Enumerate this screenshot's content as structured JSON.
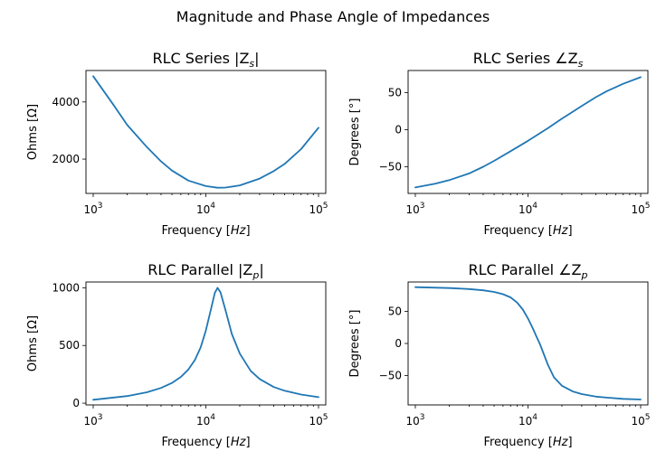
{
  "figure": {
    "title": "Magnitude and Phase Angle of Impedances"
  },
  "colors": {
    "line": "#1f77b4"
  },
  "chart_data": [
    {
      "id": "series-magnitude",
      "type": "line",
      "title": "RLC Series |Z",
      "title_sub": "s",
      "title_suffix": "|",
      "xlabel": "Frequency [",
      "xlabel_unit": "Hz",
      "xlabel_suffix": "]",
      "ylabel": "Ohms [Ω]",
      "xscale": "log",
      "xlim": [
        1000,
        100000
      ],
      "ylim": [
        800,
        5100
      ],
      "xticks": [
        1000,
        10000,
        100000
      ],
      "xtick_labels": [
        [
          "10",
          "3"
        ],
        [
          "10",
          "4"
        ],
        [
          "10",
          "5"
        ]
      ],
      "yticks": [
        2000,
        4000
      ],
      "ytick_labels": [
        "2000",
        "4000"
      ],
      "grid": false,
      "x": [
        1000,
        1500,
        2000,
        3000,
        4000,
        5000,
        7000,
        10000,
        12700,
        15000,
        20000,
        30000,
        40000,
        50000,
        70000,
        100000
      ],
      "y": [
        4900,
        3920,
        3200,
        2420,
        1920,
        1600,
        1250,
        1055,
        1000,
        1005,
        1080,
        1320,
        1580,
        1830,
        2350,
        3100
      ]
    },
    {
      "id": "series-phase",
      "type": "line",
      "title": "RLC Series ∠Z",
      "title_sub": "s",
      "title_suffix": "",
      "xlabel": "Frequency [",
      "xlabel_unit": "Hz",
      "xlabel_suffix": "]",
      "ylabel": "Degrees [°]",
      "xscale": "log",
      "xlim": [
        1000,
        100000
      ],
      "ylim": [
        -86,
        80
      ],
      "xticks": [
        1000,
        10000,
        100000
      ],
      "xtick_labels": [
        [
          "10",
          "3"
        ],
        [
          "10",
          "4"
        ],
        [
          "10",
          "5"
        ]
      ],
      "yticks": [
        -50,
        0,
        50
      ],
      "ytick_labels": [
        "−50",
        "0",
        "50"
      ],
      "grid": false,
      "x": [
        1000,
        1500,
        2000,
        3000,
        4000,
        5000,
        7000,
        10000,
        15000,
        20000,
        30000,
        40000,
        50000,
        70000,
        100000
      ],
      "y": [
        -78,
        -73,
        -68,
        -59,
        -50,
        -42,
        -29,
        -15,
        2,
        15,
        32,
        44,
        52,
        62,
        71
      ]
    },
    {
      "id": "parallel-magnitude",
      "type": "line",
      "title": "RLC Parallel |Z",
      "title_sub": "p",
      "title_suffix": "|",
      "xlabel": "Frequency [",
      "xlabel_unit": "Hz",
      "xlabel_suffix": "]",
      "ylabel": "Ohms [Ω]",
      "xscale": "log",
      "xlim": [
        1000,
        100000
      ],
      "ylim": [
        -15,
        1050
      ],
      "xticks": [
        1000,
        10000,
        100000
      ],
      "xtick_labels": [
        [
          "10",
          "3"
        ],
        [
          "10",
          "4"
        ],
        [
          "10",
          "5"
        ]
      ],
      "yticks": [
        0,
        500,
        1000
      ],
      "ytick_labels": [
        "0",
        "500",
        "1000"
      ],
      "grid": false,
      "x": [
        1000,
        2000,
        3000,
        4000,
        5000,
        6000,
        7000,
        8000,
        9000,
        10000,
        11000,
        12000,
        12700,
        13500,
        15000,
        17000,
        20000,
        25000,
        30000,
        40000,
        50000,
        70000,
        100000
      ],
      "y": [
        30,
        62,
        95,
        132,
        175,
        228,
        292,
        375,
        485,
        630,
        800,
        955,
        1000,
        960,
        800,
        600,
        430,
        280,
        210,
        140,
        108,
        75,
        52
      ]
    },
    {
      "id": "parallel-phase",
      "type": "line",
      "title": "RLC Parallel ∠Z",
      "title_sub": "p",
      "title_suffix": "",
      "xlabel": "Frequency [",
      "xlabel_unit": "Hz",
      "xlabel_suffix": "]",
      "ylabel": "Degrees [°]",
      "xscale": "log",
      "xlim": [
        1000,
        100000
      ],
      "ylim": [
        -96,
        96
      ],
      "xticks": [
        1000,
        10000,
        100000
      ],
      "xtick_labels": [
        [
          "10",
          "3"
        ],
        [
          "10",
          "4"
        ],
        [
          "10",
          "5"
        ]
      ],
      "yticks": [
        -50,
        0,
        50
      ],
      "ytick_labels": [
        "−50",
        "0",
        "50"
      ],
      "grid": false,
      "x": [
        1000,
        2000,
        3000,
        4000,
        5000,
        6000,
        7000,
        8000,
        9000,
        10000,
        11000,
        12000,
        12700,
        13500,
        15000,
        17000,
        20000,
        25000,
        30000,
        40000,
        50000,
        70000,
        100000
      ],
      "y": [
        88,
        86.5,
        85,
        83,
        80.5,
        77,
        72,
        64,
        53,
        39,
        24,
        9,
        0,
        -12,
        -33,
        -53,
        -66,
        -75,
        -79,
        -83,
        -84.5,
        -86.5,
        -87.5
      ]
    }
  ]
}
